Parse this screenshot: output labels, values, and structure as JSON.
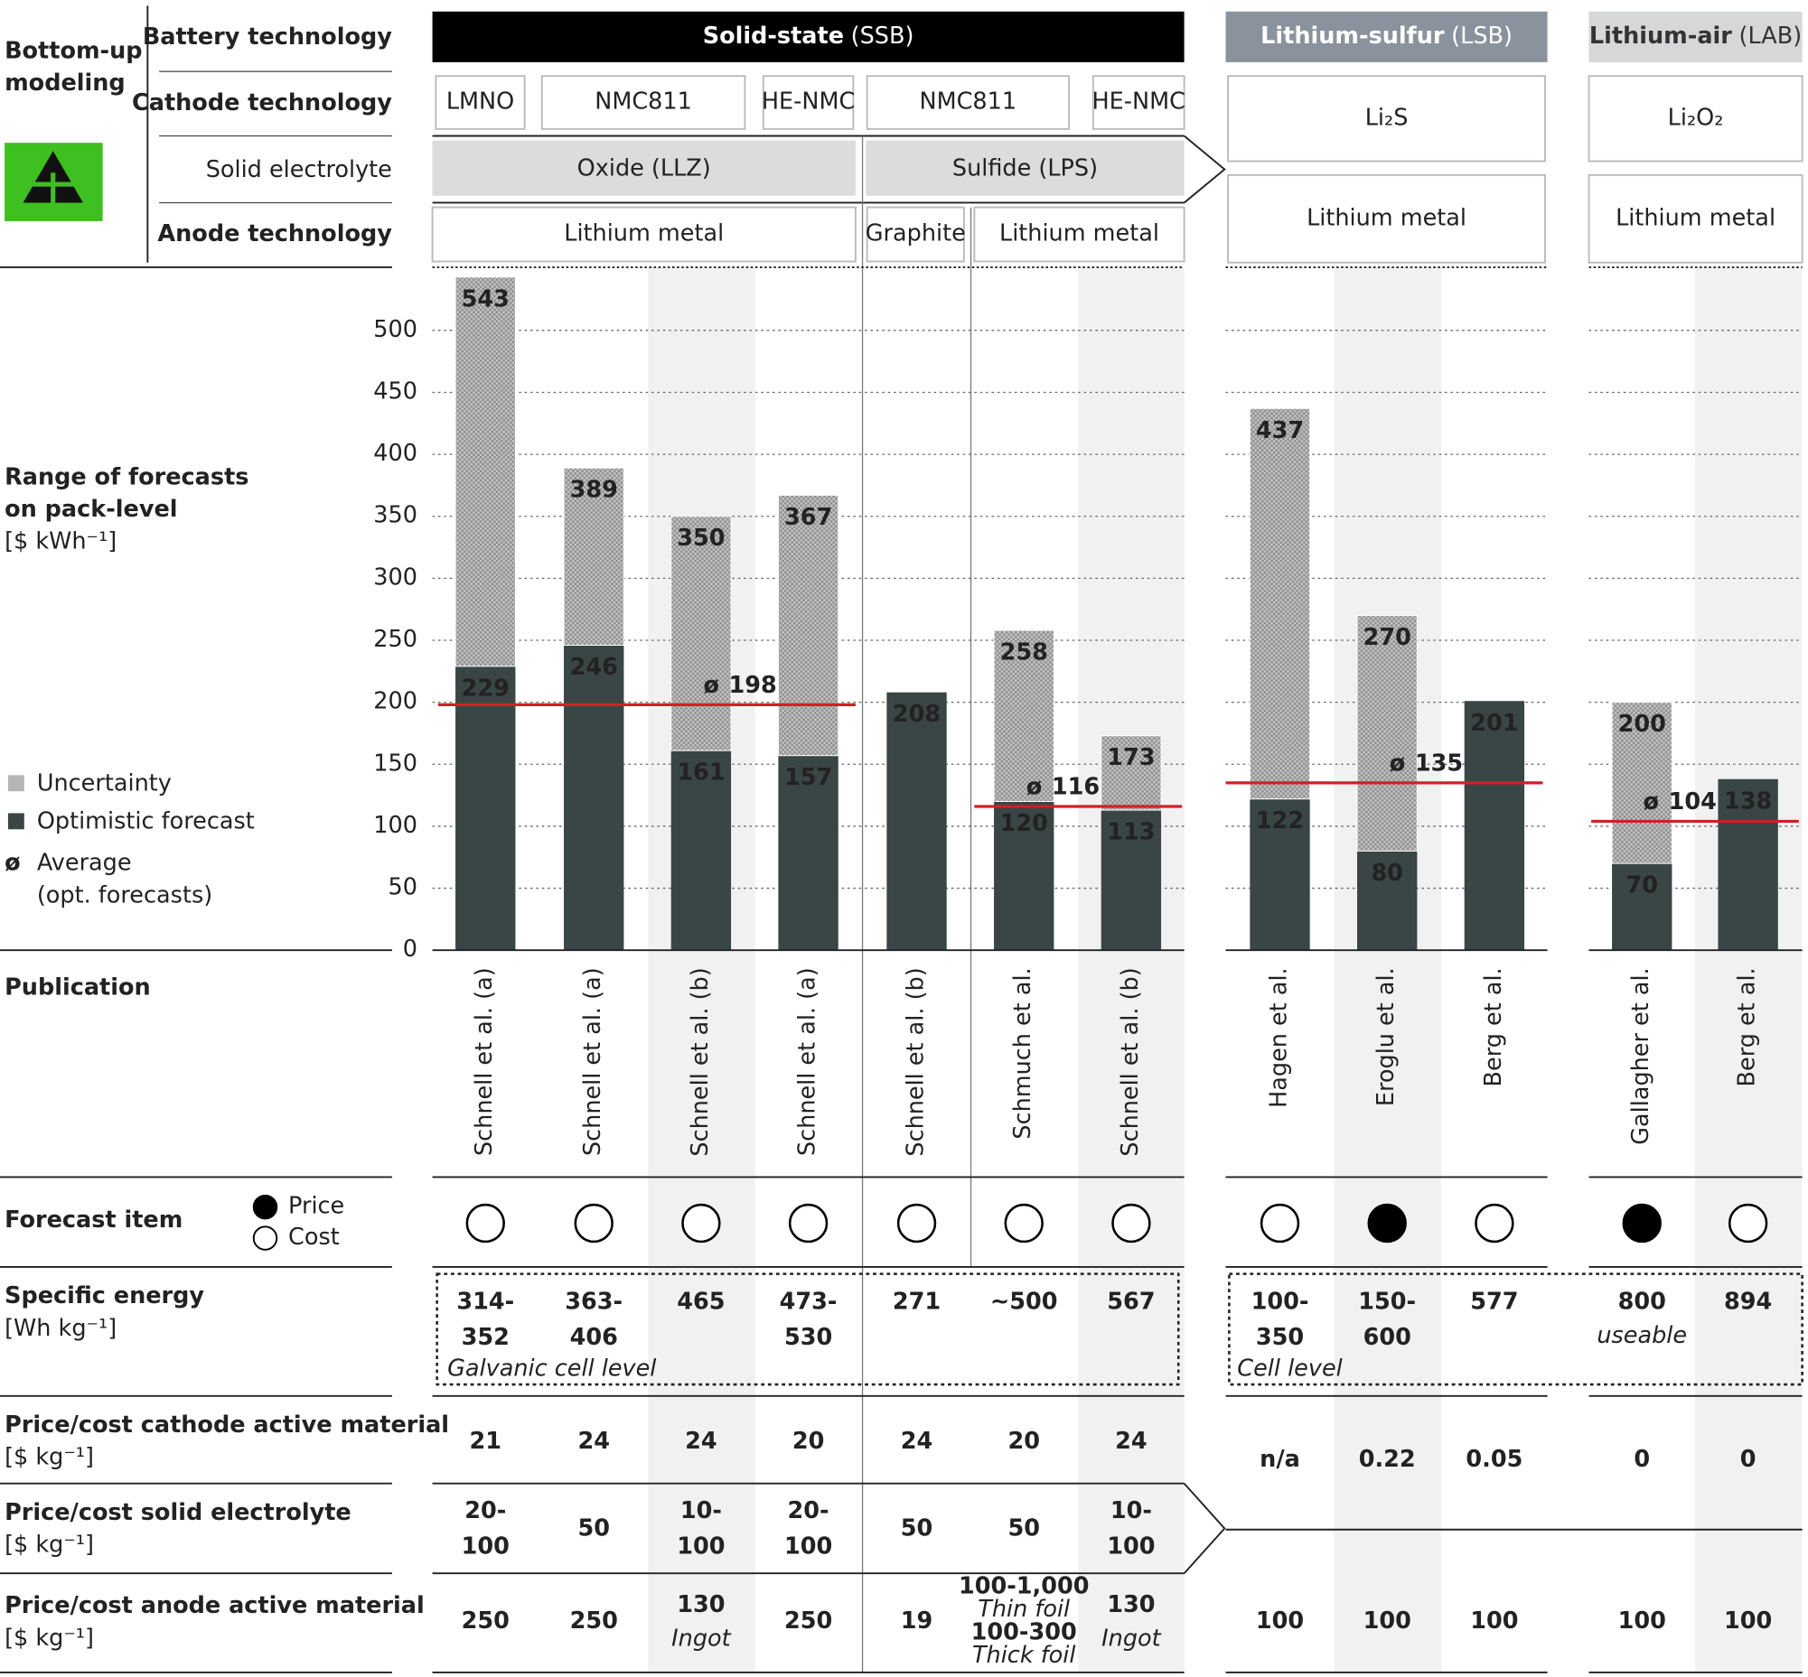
{
  "header": {
    "title_lines": [
      "Bottom-up",
      "modeling"
    ],
    "row_labels": [
      "Battery technology",
      "Cathode technology",
      "Solid electrolyte",
      "Anode technology"
    ],
    "groups": [
      {
        "name": "Solid-state",
        "abbr": "(SSB)"
      },
      {
        "name": "Lithium-sulfur",
        "abbr": "(LSB)"
      },
      {
        "name": "Lithium-air",
        "abbr": "(LAB)"
      }
    ],
    "cathodes": [
      "LMNO",
      "NMC811",
      "HE-NMC",
      "NMC811",
      "HE-NMC",
      "Li₂S",
      "Li₂O₂"
    ],
    "electrolytes": [
      "Oxide (LLZ)",
      "Sulfide (LPS)"
    ],
    "anodes": [
      "Lithium metal",
      "Graphite",
      "Lithium metal",
      "Lithium metal",
      "Lithium metal"
    ]
  },
  "chart_data": {
    "type": "bar",
    "title_lines": [
      "Range of forecasts",
      "on pack-level",
      "[$ kWh⁻¹]"
    ],
    "category_label": "Publication",
    "categories": [
      "Schnell et al. (a)",
      "Schnell et al. (a)",
      "Schnell et al. (b)",
      "Schnell et al. (a)",
      "Schnell et al. (b)",
      "Schmuch et al.",
      "Schnell et al. (b)",
      "Hagen et al.",
      "Eroglu et al.",
      "Berg et al.",
      "Gallagher et al.",
      "Berg et al."
    ],
    "series": [
      {
        "name": "Uncertainty",
        "color": "#b5b5b5",
        "values": [
          543,
          389,
          350,
          367,
          null,
          258,
          173,
          437,
          270,
          null,
          200,
          null
        ]
      },
      {
        "name": "Optimistic forecast",
        "color": "#3a4545",
        "values": [
          229,
          246,
          161,
          157,
          208,
          120,
          113,
          122,
          80,
          201,
          70,
          138
        ]
      }
    ],
    "average": {
      "symbol": "ø",
      "name": "Average",
      "note": "(opt. forecasts)",
      "color": "#d21f26",
      "values": [
        198,
        116,
        135,
        104
      ]
    },
    "ylim": [
      0,
      550
    ],
    "yticks": [
      0,
      50,
      100,
      150,
      200,
      250,
      300,
      350,
      400,
      450,
      500
    ],
    "grid": true
  },
  "table": {
    "forecast_item": {
      "label": "Forecast item",
      "legend": [
        "Price",
        "Cost"
      ],
      "values": [
        "Cost",
        "Cost",
        "Cost",
        "Cost",
        "Cost",
        "Cost",
        "Cost",
        "Cost",
        "Price",
        "Cost",
        "Price",
        "Cost"
      ]
    },
    "rows": [
      {
        "label": [
          "Specific energy",
          "[Wh kg⁻¹]"
        ],
        "notes": [
          "Galvanic cell level",
          "Cell level"
        ],
        "cells": [
          [
            {
              "lines": [
                "314-",
                "352"
              ]
            }
          ],
          [
            {
              "lines": [
                "363-",
                "406"
              ]
            }
          ],
          [
            {
              "lines": [
                "465"
              ]
            }
          ],
          [
            {
              "lines": [
                "473-",
                "530"
              ]
            }
          ],
          [
            {
              "lines": [
                "271"
              ]
            }
          ],
          [
            {
              "lines": [
                "~500"
              ]
            }
          ],
          [
            {
              "lines": [
                "567"
              ]
            }
          ],
          [
            {
              "lines": [
                "100-",
                "350"
              ]
            }
          ],
          [
            {
              "lines": [
                "150-",
                "600"
              ]
            }
          ],
          [
            {
              "lines": [
                "577"
              ]
            }
          ],
          [
            {
              "lines": [
                "800"
              ],
              "note": "useable"
            }
          ],
          [
            {
              "lines": [
                "894"
              ]
            }
          ]
        ]
      },
      {
        "label": [
          "Price/cost cathode active material",
          "[$ kg⁻¹]"
        ],
        "cells": [
          [
            {
              "lines": [
                "21"
              ]
            }
          ],
          [
            {
              "lines": [
                "24"
              ]
            }
          ],
          [
            {
              "lines": [
                "24"
              ]
            }
          ],
          [
            {
              "lines": [
                "20"
              ]
            }
          ],
          [
            {
              "lines": [
                "24"
              ]
            }
          ],
          [
            {
              "lines": [
                "20"
              ]
            }
          ],
          [
            {
              "lines": [
                "24"
              ]
            }
          ],
          [
            {
              "lines": [
                "n/a"
              ]
            }
          ],
          [
            {
              "lines": [
                "0.22"
              ]
            }
          ],
          [
            {
              "lines": [
                "0.05"
              ]
            }
          ],
          [
            {
              "lines": [
                "0"
              ]
            }
          ],
          [
            {
              "lines": [
                "0"
              ]
            }
          ]
        ]
      },
      {
        "label": [
          "Price/cost solid electrolyte",
          "[$ kg⁻¹]"
        ],
        "cells": [
          [
            {
              "lines": [
                "20-",
                "100"
              ]
            }
          ],
          [
            {
              "lines": [
                "50"
              ]
            }
          ],
          [
            {
              "lines": [
                "10-",
                "100"
              ]
            }
          ],
          [
            {
              "lines": [
                "20-",
                "100"
              ]
            }
          ],
          [
            {
              "lines": [
                "50"
              ]
            }
          ],
          [
            {
              "lines": [
                "50"
              ]
            }
          ],
          [
            {
              "lines": [
                "10-",
                "100"
              ]
            }
          ]
        ]
      },
      {
        "label": [
          "Price/cost anode active material",
          "[$ kg⁻¹]"
        ],
        "cells": [
          [
            {
              "lines": [
                "250"
              ]
            }
          ],
          [
            {
              "lines": [
                "250"
              ]
            }
          ],
          [
            {
              "lines": [
                "130"
              ],
              "note": "Ingot"
            }
          ],
          [
            {
              "lines": [
                "250"
              ]
            }
          ],
          [
            {
              "lines": [
                "19"
              ]
            }
          ],
          [
            {
              "lines": [
                "100-1,000"
              ],
              "note": "Thin foil"
            },
            {
              "lines": [
                "100-300"
              ],
              "note": "Thick foil"
            }
          ],
          [
            {
              "lines": [
                "130"
              ],
              "note": "Ingot"
            }
          ],
          [
            {
              "lines": [
                "100"
              ]
            }
          ],
          [
            {
              "lines": [
                "100"
              ]
            }
          ],
          [
            {
              "lines": [
                "100"
              ]
            }
          ],
          [
            {
              "lines": [
                "100"
              ]
            }
          ],
          [
            {
              "lines": [
                "100"
              ]
            }
          ]
        ]
      }
    ]
  }
}
